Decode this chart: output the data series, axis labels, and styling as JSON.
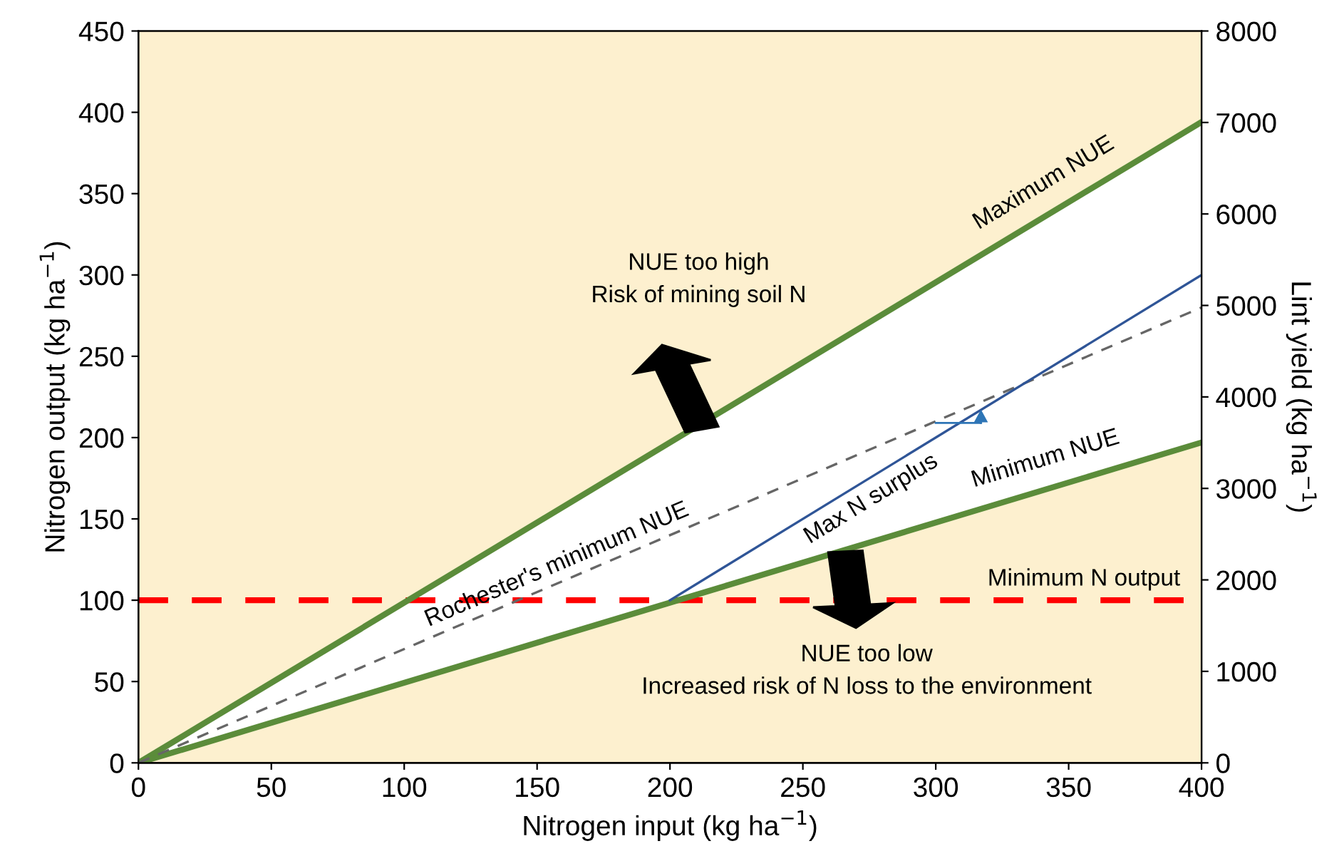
{
  "chart_data": {
    "type": "line",
    "xlabel": "Nitrogen input (kg ha$^{−1}$)",
    "ylabel": "Nitrogen output (kg ha$^{−1}$)",
    "y2label": "Lint yield (kg ha$^{−1}$)",
    "series": [
      {
        "name": "Maximum NUE",
        "color": "#5b8c3a",
        "x": [
          0,
          400
        ],
        "values": [
          0,
          394
        ]
      },
      {
        "name": "Minimum NUE",
        "color": "#5b8c3a",
        "x": [
          0,
          400
        ],
        "values": [
          0,
          197
        ]
      },
      {
        "name": "Rochester's minimum NUE",
        "color": "#666666",
        "x": [
          0,
          400
        ],
        "values": [
          0,
          280
        ],
        "line_style": "dashed"
      },
      {
        "name": "Max N surplus",
        "color": "#2f5597",
        "x": [
          200,
          400
        ],
        "values": [
          100,
          300
        ]
      }
    ],
    "ref_lines": [
      {
        "axis": "y",
        "value": 100,
        "label": "Minimum N output",
        "color": "#ff0000",
        "line_style": "dashed"
      }
    ],
    "annotations": [
      "NUE too high\nRisk of mining soil N",
      "NUE too low\nIncreased risk of N loss to the environment"
    ],
    "xlim": [
      0,
      400
    ],
    "xticks": [
      0,
      50,
      100,
      150,
      200,
      250,
      300,
      350,
      400
    ],
    "ylim": [
      0,
      450
    ],
    "yticks": [
      0,
      50,
      100,
      150,
      200,
      250,
      300,
      350,
      400,
      450
    ],
    "y2lim": [
      0,
      8000
    ],
    "y2ticks": [
      0,
      1000,
      2000,
      3000,
      4000,
      5000,
      6000,
      7000,
      8000
    ],
    "grid": false,
    "legend": false,
    "marker": "none"
  }
}
